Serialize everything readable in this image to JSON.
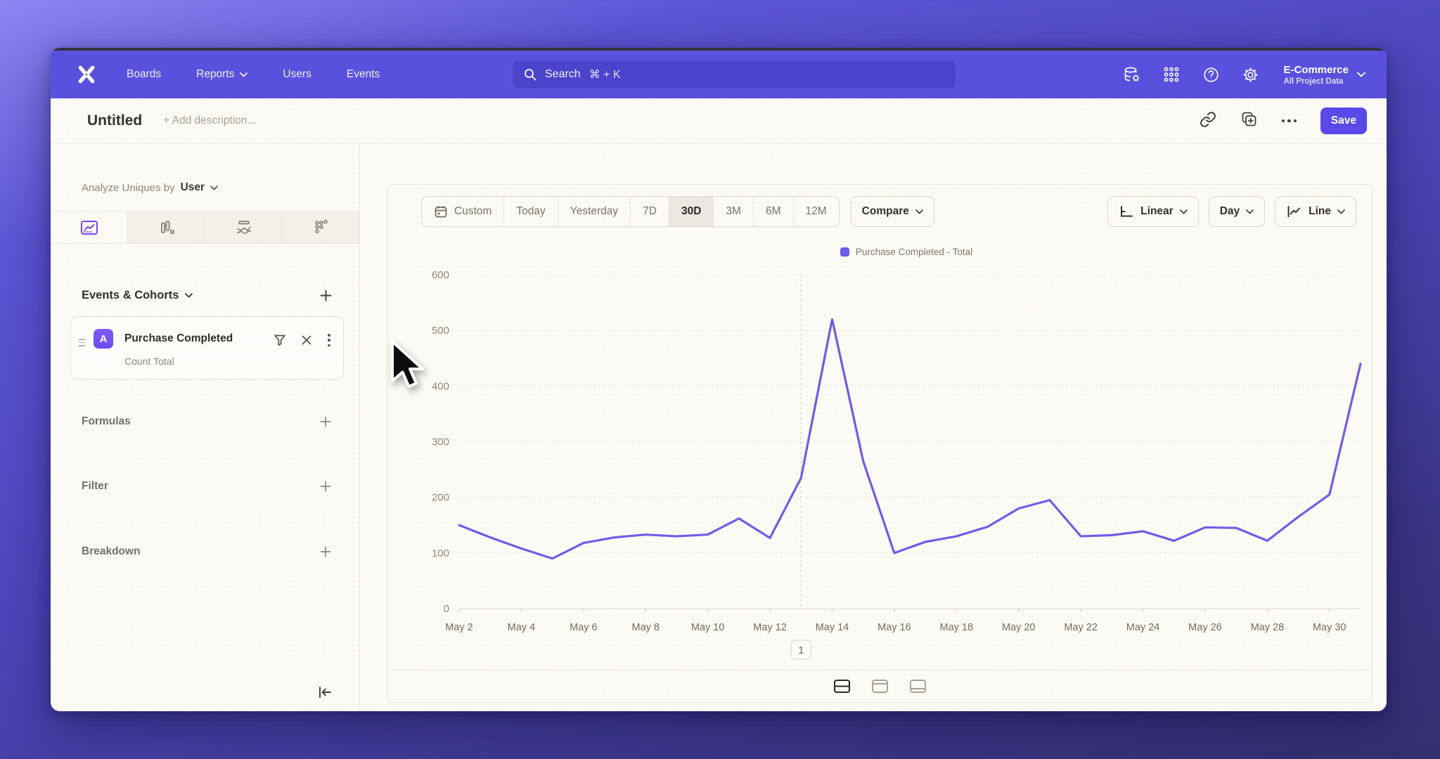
{
  "nav": {
    "brand": "Mixpanel",
    "items": [
      {
        "label": "Boards",
        "has_chevron": false
      },
      {
        "label": "Reports",
        "has_chevron": true
      },
      {
        "label": "Users",
        "has_chevron": false
      },
      {
        "label": "Events",
        "has_chevron": false
      }
    ],
    "search": {
      "label": "Search",
      "shortcut": "⌘ + K"
    },
    "project": {
      "name": "E-Commerce",
      "scope": "All Project Data"
    }
  },
  "toolbar": {
    "title": "Untitled",
    "description_placeholder": "+ Add description...",
    "save_label": "Save"
  },
  "sidebar": {
    "analyze_prefix": "Analyze Uniques by",
    "analyze_value": "User",
    "events_title": "Events & Cohorts",
    "event_card": {
      "badge": "A",
      "name": "Purchase Completed",
      "metric": "Count Total"
    },
    "groups": [
      {
        "label": "Formulas"
      },
      {
        "label": "Filter"
      },
      {
        "label": "Breakdown"
      }
    ]
  },
  "chart_toolbar": {
    "ranges": [
      "Custom",
      "Today",
      "Yesterday",
      "7D",
      "30D",
      "3M",
      "6M",
      "12M"
    ],
    "selected_range": "30D",
    "compare_label": "Compare",
    "scale_label": "Linear",
    "interval_label": "Day",
    "chart_type_label": "Line"
  },
  "chart_data": {
    "type": "line",
    "legend": [
      "Purchase Completed - Total"
    ],
    "x": [
      "May 2",
      "May 3",
      "May 4",
      "May 5",
      "May 6",
      "May 7",
      "May 8",
      "May 9",
      "May 10",
      "May 11",
      "May 12",
      "May 13",
      "May 14",
      "May 15",
      "May 16",
      "May 17",
      "May 18",
      "May 19",
      "May 20",
      "May 21",
      "May 22",
      "May 23",
      "May 24",
      "May 25",
      "May 26",
      "May 27",
      "May 28",
      "May 29",
      "May 30",
      "May 31"
    ],
    "series": [
      {
        "name": "Purchase Completed - Total",
        "values": [
          150,
          128,
          108,
          90,
          118,
          128,
          133,
          130,
          133,
          162,
          127,
          235,
          520,
          265,
          100,
          120,
          130,
          147,
          180,
          195,
          130,
          132,
          139,
          122,
          146,
          145,
          122,
          165,
          205,
          440
        ]
      }
    ],
    "ylim": [
      0,
      600
    ],
    "yticks": [
      0,
      100,
      200,
      300,
      400,
      500,
      600
    ],
    "grid": true,
    "legend_position": "top",
    "line_color": "#6f5ce8",
    "annotations": [
      {
        "label": "1",
        "x": "May 13"
      }
    ]
  },
  "colors": {
    "nav_bg": "#5951de",
    "accent": "#5a49e9",
    "line": "#6f5ce8",
    "active_tab_icon": "#7b46f0"
  }
}
